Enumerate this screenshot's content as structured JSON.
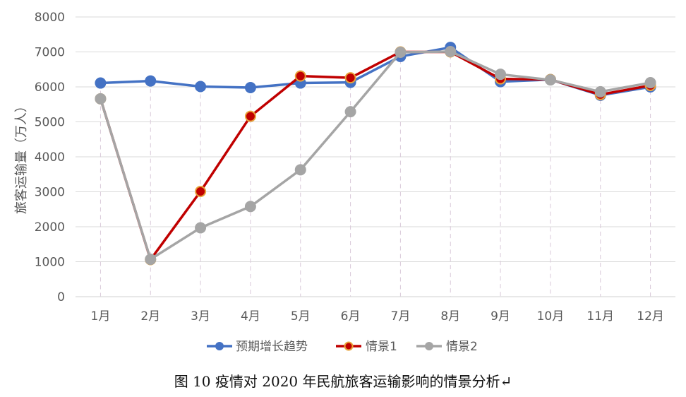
{
  "caption": "图 10 疫情对 2020 年民航旅客运输影响的情景分析↵",
  "chart_data": {
    "type": "line",
    "ylabel": "旅客运输量（万人）",
    "ylim": [
      0,
      8000
    ],
    "yticks": [
      0,
      1000,
      2000,
      3000,
      4000,
      5000,
      6000,
      7000,
      8000
    ],
    "categories": [
      "1月",
      "2月",
      "3月",
      "4月",
      "5月",
      "6月",
      "7月",
      "8月",
      "9月",
      "10月",
      "11月",
      "12月"
    ],
    "series": [
      {
        "name": "预期增长趋势",
        "color": "#4472C4",
        "values": [
          6110,
          6170,
          6010,
          5980,
          6110,
          6130,
          6870,
          7130,
          6150,
          6210,
          5760,
          6000
        ]
      },
      {
        "name": "情景1",
        "color": "#C00000",
        "values": [
          5660,
          1060,
          3010,
          5160,
          6310,
          6260,
          7000,
          7000,
          6230,
          6210,
          5780,
          6040
        ]
      },
      {
        "name": "情景2",
        "color": "#A5A5A5",
        "values": [
          5660,
          1070,
          1970,
          2580,
          3630,
          5290,
          6990,
          7010,
          6360,
          6200,
          5860,
          6120
        ]
      }
    ],
    "grid": true,
    "legend_position": "bottom"
  }
}
